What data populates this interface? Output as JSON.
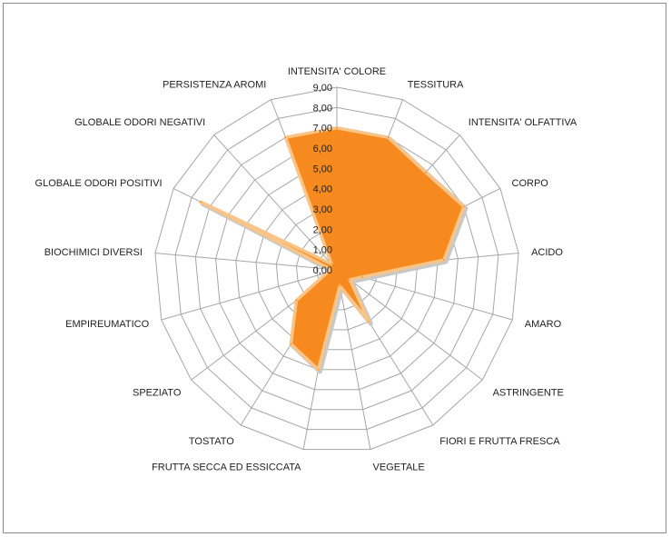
{
  "chart_data": {
    "type": "radar",
    "title": "",
    "categories": [
      "INTENSITA' COLORE",
      "TESSITURA",
      "INTENSITA' OLFATTIVA",
      "CORPO",
      "ACIDO",
      "AMARO",
      "ASTRINGENTE",
      "FIORI E FRUTTA FRESCA",
      "VEGETALE",
      "FRUTTA SECCA ED ESSICCATA",
      "TOSTATO",
      "SPEZIATO",
      "EMPIREUMATICO",
      "BIOCHIMICI DIVERSI",
      "GLOBALE ODORI POSITIVI",
      "GLOBALE ODORI NEGATIVI",
      "PERSISTENZA AROMI"
    ],
    "series": [
      {
        "values": [
          7.0,
          7.0,
          6.5,
          7.0,
          5.3,
          1.3,
          0.8,
          3.0,
          0.8,
          5.0,
          4.3,
          2.5,
          0.5,
          0.3,
          7.5,
          0.4,
          7.0
        ]
      }
    ],
    "ticks": [
      "0,00",
      "1,00",
      "2,00",
      "3,00",
      "4,00",
      "5,00",
      "6,00",
      "7,00",
      "8,00",
      "9,00"
    ],
    "rlim": [
      0,
      9
    ],
    "grid": true,
    "legend": "none",
    "fill_color": "#f68a1e",
    "outline_color": "#f9c488",
    "grid_color": "#a6a6a6"
  }
}
